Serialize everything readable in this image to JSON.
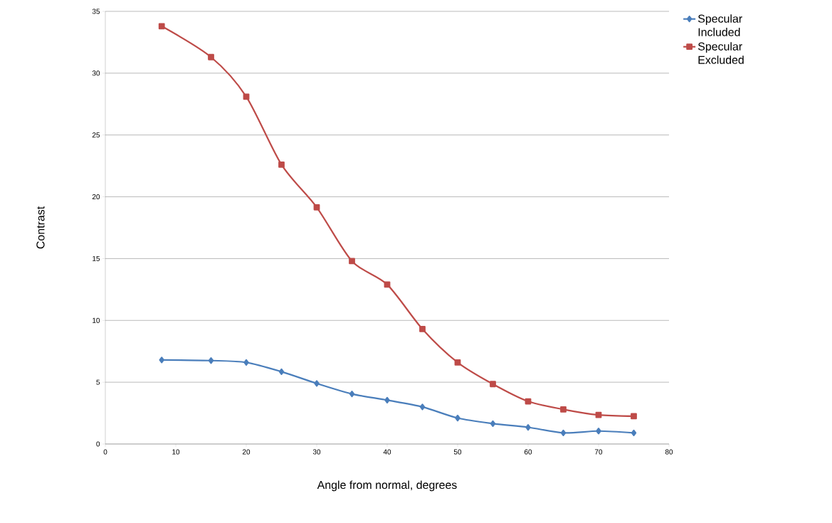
{
  "chart_data": {
    "type": "line",
    "xlabel": "Angle from normal, degrees",
    "ylabel": "Contrast",
    "x": [
      8,
      15,
      20,
      25,
      30,
      35,
      40,
      45,
      50,
      55,
      60,
      65,
      70,
      75
    ],
    "series": [
      {
        "name": "Specular Included",
        "color": "#4a7ebb",
        "marker": "diamond",
        "values": [
          6.8,
          6.75,
          6.6,
          5.85,
          4.9,
          4.05,
          3.55,
          3.0,
          2.1,
          1.65,
          1.35,
          0.9,
          1.05,
          0.9
        ]
      },
      {
        "name": "Specular Excluded",
        "color": "#be4b48",
        "marker": "square",
        "values": [
          33.8,
          31.3,
          28.1,
          22.6,
          19.15,
          14.8,
          12.9,
          9.3,
          6.6,
          4.85,
          3.45,
          2.8,
          2.35,
          2.25
        ]
      }
    ],
    "xlim": [
      0,
      80
    ],
    "xticks": [
      0,
      10,
      20,
      30,
      40,
      50,
      60,
      70,
      80
    ],
    "ylim": [
      0,
      35
    ],
    "yticks": [
      0,
      5,
      10,
      15,
      20,
      25,
      30,
      35
    ],
    "grid": "y",
    "legend": "right"
  }
}
